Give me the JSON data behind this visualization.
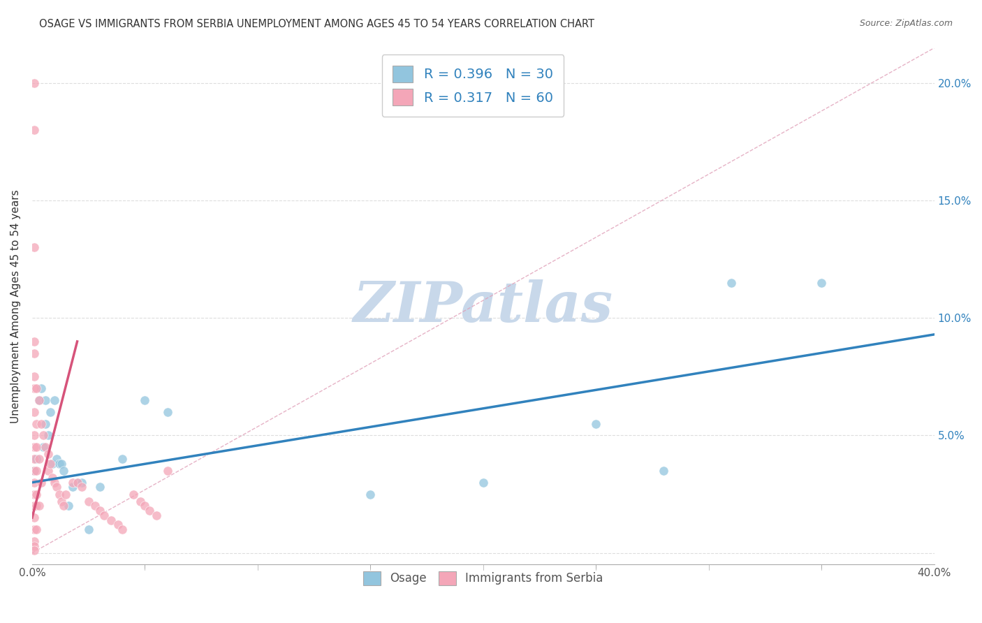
{
  "title": "OSAGE VS IMMIGRANTS FROM SERBIA UNEMPLOYMENT AMONG AGES 45 TO 54 YEARS CORRELATION CHART",
  "source": "Source: ZipAtlas.com",
  "ylabel": "Unemployment Among Ages 45 to 54 years",
  "xlim": [
    0.0,
    0.4
  ],
  "ylim": [
    -0.005,
    0.215
  ],
  "xticks": [
    0.0,
    0.1,
    0.2,
    0.3,
    0.4
  ],
  "xtick_labels": [
    "0.0%",
    "",
    "",
    "",
    "40.0%"
  ],
  "yticks": [
    0.0,
    0.05,
    0.1,
    0.15,
    0.2
  ],
  "ytick_labels_left": [
    "",
    "5.0%",
    "10.0%",
    "15.0%",
    "20.0%"
  ],
  "ytick_labels_right": [
    "",
    "5.0%",
    "10.0%",
    "15.0%",
    "20.0%"
  ],
  "blue_color": "#92c5de",
  "pink_color": "#f4a6b8",
  "blue_line_color": "#3182bd",
  "pink_line_color": "#d6537a",
  "blue_R": 0.396,
  "blue_N": 30,
  "pink_R": 0.317,
  "pink_N": 60,
  "blue_scatter_x": [
    0.001,
    0.002,
    0.003,
    0.004,
    0.005,
    0.006,
    0.006,
    0.007,
    0.008,
    0.009,
    0.01,
    0.011,
    0.012,
    0.013,
    0.014,
    0.016,
    0.018,
    0.02,
    0.022,
    0.025,
    0.03,
    0.04,
    0.05,
    0.06,
    0.15,
    0.2,
    0.25,
    0.28,
    0.31,
    0.35
  ],
  "blue_scatter_y": [
    0.035,
    0.04,
    0.065,
    0.07,
    0.045,
    0.065,
    0.055,
    0.05,
    0.06,
    0.038,
    0.065,
    0.04,
    0.038,
    0.038,
    0.035,
    0.02,
    0.028,
    0.03,
    0.03,
    0.01,
    0.028,
    0.04,
    0.065,
    0.06,
    0.025,
    0.03,
    0.055,
    0.035,
    0.115,
    0.115
  ],
  "pink_scatter_x": [
    0.001,
    0.001,
    0.001,
    0.001,
    0.001,
    0.001,
    0.001,
    0.001,
    0.001,
    0.001,
    0.001,
    0.001,
    0.001,
    0.001,
    0.001,
    0.001,
    0.001,
    0.001,
    0.001,
    0.001,
    0.002,
    0.002,
    0.002,
    0.002,
    0.002,
    0.002,
    0.002,
    0.003,
    0.003,
    0.003,
    0.004,
    0.004,
    0.005,
    0.006,
    0.007,
    0.007,
    0.008,
    0.009,
    0.01,
    0.011,
    0.012,
    0.013,
    0.014,
    0.015,
    0.018,
    0.02,
    0.022,
    0.025,
    0.028,
    0.03,
    0.032,
    0.035,
    0.038,
    0.04,
    0.045,
    0.048,
    0.05,
    0.052,
    0.055,
    0.06
  ],
  "pink_scatter_y": [
    0.2,
    0.18,
    0.13,
    0.09,
    0.085,
    0.075,
    0.07,
    0.06,
    0.05,
    0.045,
    0.04,
    0.035,
    0.03,
    0.025,
    0.02,
    0.015,
    0.01,
    0.005,
    0.003,
    0.001,
    0.07,
    0.055,
    0.045,
    0.035,
    0.025,
    0.02,
    0.01,
    0.065,
    0.04,
    0.02,
    0.055,
    0.03,
    0.05,
    0.045,
    0.042,
    0.035,
    0.038,
    0.032,
    0.03,
    0.028,
    0.025,
    0.022,
    0.02,
    0.025,
    0.03,
    0.03,
    0.028,
    0.022,
    0.02,
    0.018,
    0.016,
    0.014,
    0.012,
    0.01,
    0.025,
    0.022,
    0.02,
    0.018,
    0.016,
    0.035
  ],
  "blue_trend_x": [
    0.0,
    0.4
  ],
  "blue_trend_y": [
    0.03,
    0.093
  ],
  "pink_trend_x": [
    0.0,
    0.02
  ],
  "pink_trend_y": [
    0.015,
    0.09
  ],
  "ref_line_x": [
    0.0,
    0.4
  ],
  "ref_line_y": [
    0.0,
    0.215
  ],
  "watermark": "ZIPatlas",
  "watermark_color": "#c8d8ea"
}
